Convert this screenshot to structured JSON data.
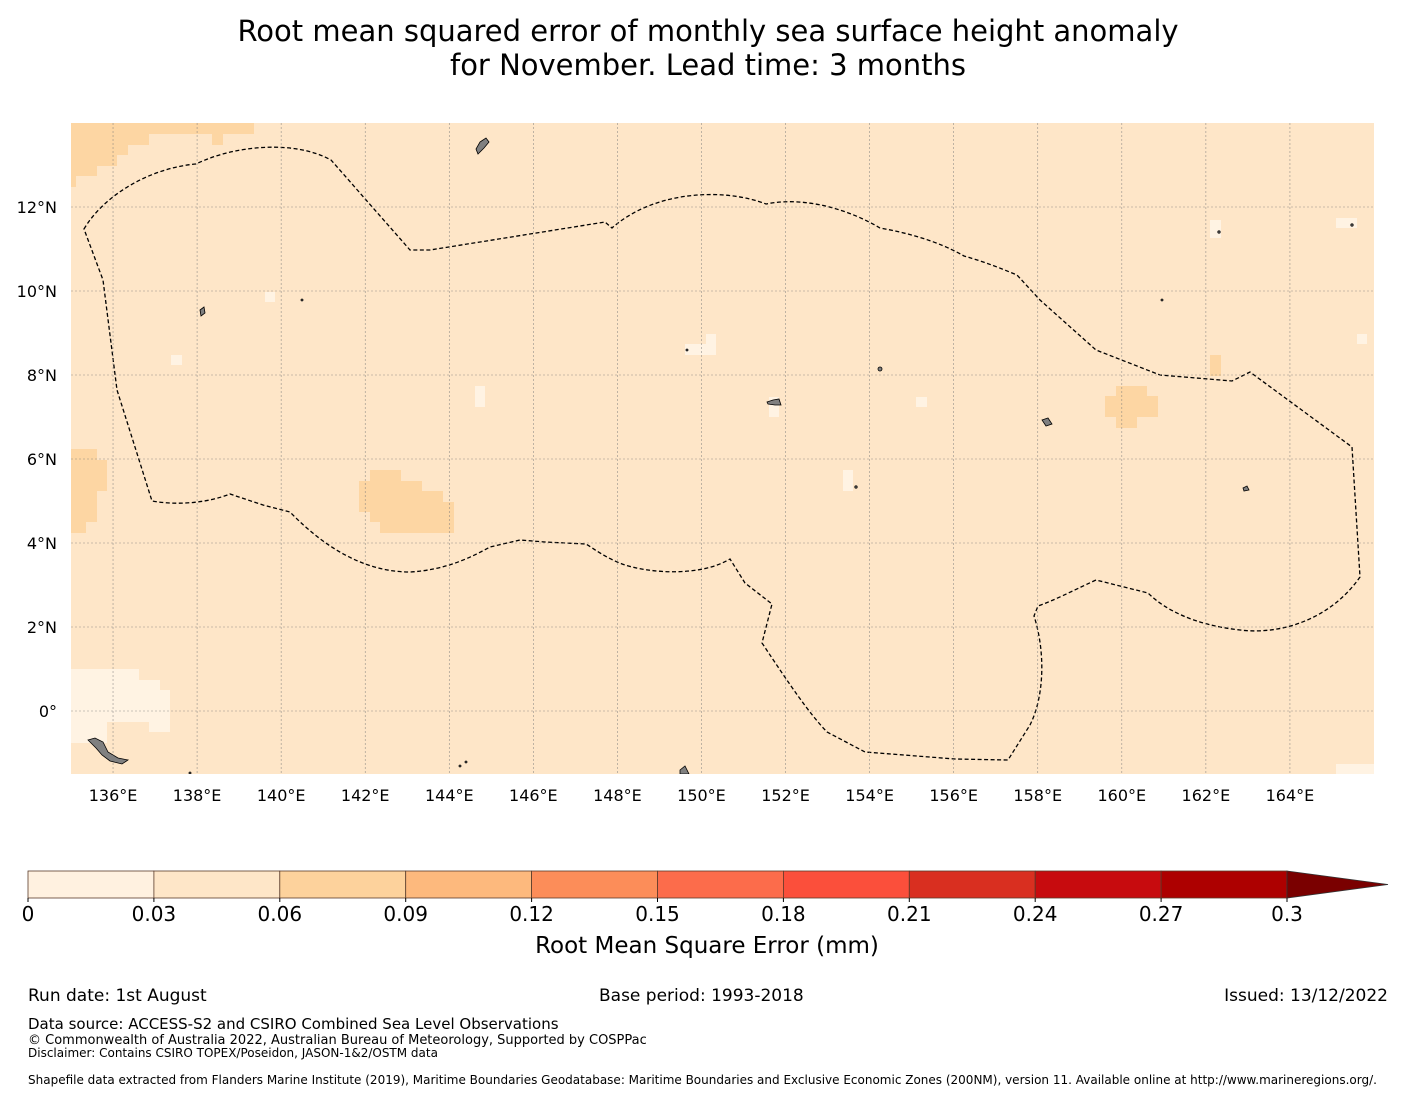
{
  "title": {
    "line1": "Root mean squared error of monthly sea surface height anomaly",
    "line2": "for November. Lead time: 3 months"
  },
  "chart_data": {
    "type": "heatmap",
    "xlim": [
      135,
      166
    ],
    "ylim": [
      -1.5,
      14
    ],
    "x_ticks": [
      "136°E",
      "138°E",
      "140°E",
      "142°E",
      "144°E",
      "146°E",
      "148°E",
      "150°E",
      "152°E",
      "154°E",
      "156°E",
      "158°E",
      "160°E",
      "162°E",
      "164°E"
    ],
    "y_ticks": [
      "12°N",
      "10°N",
      "8°N",
      "6°N",
      "4°N",
      "2°N",
      "0°"
    ],
    "background_value_range": [
      0.03,
      0.06
    ],
    "highlight_regions_range": [
      0.06,
      0.09
    ],
    "low_regions_range": [
      0,
      0.03
    ],
    "grid": true,
    "boundary_style": "dashed"
  },
  "colorbar": {
    "ticks": [
      "0",
      "0.03",
      "0.06",
      "0.09",
      "0.12",
      "0.15",
      "0.18",
      "0.21",
      "0.24",
      "0.27",
      "0.3"
    ],
    "colors": [
      "#fff1e0",
      "#fee6c8",
      "#fdd29c",
      "#fdb97d",
      "#fc8d59",
      "#fc6c4b",
      "#fb4f3b",
      "#d92f20",
      "#c70b0e",
      "#ad0000",
      "#7a0000"
    ],
    "label": "Root Mean Square Error (mm)",
    "extend": "max"
  },
  "footer": {
    "run_date": "Run date: 1st August",
    "base_period": "Base period: 1993-2018",
    "issued": "Issued: 13/12/2022",
    "data_source": "Data source: ACCESS-S2 and CSIRO Combined Sea Level Observations",
    "copyright": "© Commonwealth of Australia 2022, Australian Bureau of Meteorology, Supported by COSPPac",
    "disclaimer": "Disclaimer: Contains CSIRO TOPEX/Poseidon, JASON-1&2/OSTM data",
    "shapefile": "Shapefile data extracted from Flanders Marine Institute (2019), Maritime Boundaries Geodatabase: Maritime Boundaries and Exclusive Economic Zones (200NM), version 11. Available online at http://www.marineregions.org/."
  }
}
